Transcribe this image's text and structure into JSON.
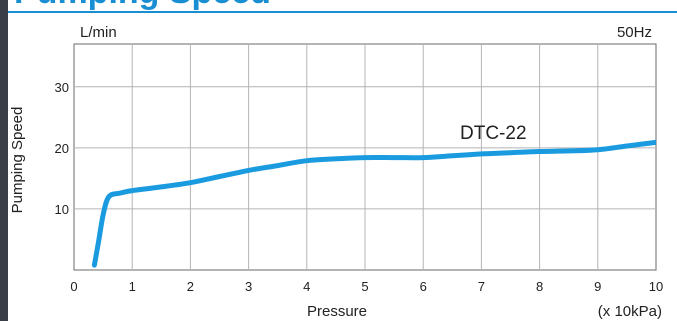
{
  "header": {
    "title": "Pumping Speed"
  },
  "chart_data": {
    "type": "line",
    "title": "",
    "xlabel": "Pressure",
    "ylabel": "Pumping Speed",
    "y_unit": "L/min",
    "x_unit": "(x 10kPa)",
    "frequency": "50Hz",
    "xlim": [
      0,
      10
    ],
    "ylim": [
      0,
      37
    ],
    "x_ticks": [
      0,
      1,
      2,
      3,
      4,
      5,
      6,
      7,
      8,
      9,
      10
    ],
    "y_ticks": [
      10,
      20,
      30
    ],
    "grid": true,
    "line_color": "#1a9be0",
    "series": [
      {
        "name": "DTC-22",
        "x": [
          0.35,
          0.42,
          0.5,
          0.6,
          0.8,
          1.0,
          1.5,
          2.0,
          2.5,
          3.0,
          3.5,
          4.0,
          4.5,
          5.0,
          5.5,
          6.0,
          6.5,
          7.0,
          7.5,
          8.0,
          8.5,
          9.0,
          9.5,
          10.0
        ],
        "y": [
          0.8,
          4.5,
          9.0,
          12.0,
          12.6,
          13.0,
          13.6,
          14.3,
          15.3,
          16.3,
          17.1,
          17.9,
          18.2,
          18.4,
          18.4,
          18.4,
          18.7,
          19.0,
          19.2,
          19.4,
          19.5,
          19.7,
          20.3,
          20.9
        ]
      }
    ]
  }
}
